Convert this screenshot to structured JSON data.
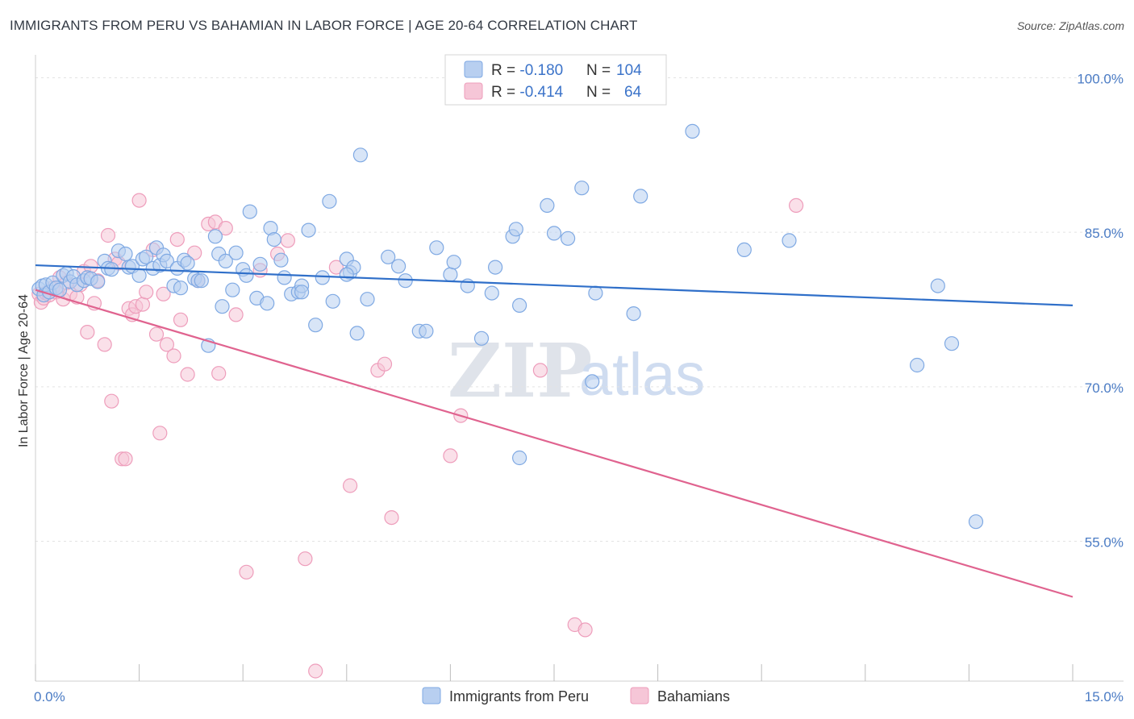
{
  "title": "IMMIGRANTS FROM PERU VS BAHAMIAN IN LABOR FORCE | AGE 20-64 CORRELATION CHART",
  "source": "Source: ZipAtlas.com",
  "watermark": {
    "zip": "ZIP",
    "atlas": "atlas"
  },
  "legend_box": {
    "rows": [
      {
        "r_label": "R = ",
        "r_value": "-0.180",
        "n_label": "N = ",
        "n_value": "104"
      },
      {
        "r_label": "R = ",
        "r_value": "-0.414",
        "n_label": "N = ",
        "n_value": "64"
      }
    ]
  },
  "chart_data": {
    "type": "scatter",
    "title": "IMMIGRANTS FROM PERU VS BAHAMIAN IN LABOR FORCE | AGE 20-64 CORRELATION CHART",
    "xlabel": "",
    "ylabel": "In Labor Force | Age 20-64",
    "xlim": [
      0,
      15
    ],
    "ylim": [
      40,
      102
    ],
    "x_tick_labels": [
      {
        "value": 0,
        "label": "0.0%"
      },
      {
        "value": 15,
        "label": "15.0%"
      }
    ],
    "y_tick_labels": [
      {
        "value": 100,
        "label": "100.0%"
      },
      {
        "value": 85,
        "label": "85.0%"
      },
      {
        "value": 70,
        "label": "70.0%"
      },
      {
        "value": 55,
        "label": "55.0%"
      }
    ],
    "grid": true,
    "legend_position": "bottom-center",
    "series": [
      {
        "name": "Immigrants from Peru",
        "color": "#7fa9e3",
        "fill": "#b8cff0",
        "line_color": "#2f6fc9",
        "r": "-0.180",
        "n": "104",
        "trend": {
          "x0": 0,
          "y0": 81.8,
          "x1": 15,
          "y1": 77.9
        },
        "points": [
          [
            0.05,
            79.5
          ],
          [
            0.1,
            79.8
          ],
          [
            0.12,
            78.9
          ],
          [
            0.15,
            79.9
          ],
          [
            0.2,
            79.2
          ],
          [
            0.25,
            80.1
          ],
          [
            0.3,
            79.6
          ],
          [
            0.35,
            79.4
          ],
          [
            0.4,
            80.8
          ],
          [
            0.45,
            81.0
          ],
          [
            0.5,
            80.2
          ],
          [
            0.55,
            80.7
          ],
          [
            0.6,
            79.9
          ],
          [
            0.7,
            80.3
          ],
          [
            0.75,
            80.6
          ],
          [
            0.8,
            80.5
          ],
          [
            0.9,
            80.2
          ],
          [
            1.0,
            82.2
          ],
          [
            1.05,
            81.5
          ],
          [
            1.1,
            81.4
          ],
          [
            1.2,
            83.2
          ],
          [
            1.3,
            82.9
          ],
          [
            1.35,
            81.6
          ],
          [
            1.4,
            81.7
          ],
          [
            1.5,
            80.8
          ],
          [
            1.55,
            82.4
          ],
          [
            1.6,
            82.6
          ],
          [
            1.7,
            81.5
          ],
          [
            1.75,
            83.5
          ],
          [
            1.8,
            81.8
          ],
          [
            1.85,
            82.8
          ],
          [
            1.9,
            82.2
          ],
          [
            2.0,
            79.8
          ],
          [
            2.05,
            81.5
          ],
          [
            2.1,
            79.6
          ],
          [
            2.15,
            82.3
          ],
          [
            2.2,
            82.0
          ],
          [
            2.3,
            80.5
          ],
          [
            2.35,
            80.3
          ],
          [
            2.4,
            80.3
          ],
          [
            2.5,
            74.0
          ],
          [
            2.6,
            84.6
          ],
          [
            2.65,
            82.9
          ],
          [
            2.7,
            77.8
          ],
          [
            2.75,
            82.2
          ],
          [
            2.85,
            79.4
          ],
          [
            2.9,
            83.0
          ],
          [
            3.0,
            81.4
          ],
          [
            3.05,
            80.8
          ],
          [
            3.1,
            87.0
          ],
          [
            3.2,
            78.6
          ],
          [
            3.25,
            81.9
          ],
          [
            3.35,
            78.1
          ],
          [
            3.4,
            85.4
          ],
          [
            3.45,
            84.3
          ],
          [
            3.55,
            82.3
          ],
          [
            3.6,
            80.6
          ],
          [
            3.7,
            79.0
          ],
          [
            3.8,
            79.2
          ],
          [
            3.85,
            79.8
          ],
          [
            3.95,
            85.2
          ],
          [
            4.05,
            76.0
          ],
          [
            4.15,
            80.6
          ],
          [
            4.25,
            88.0
          ],
          [
            4.3,
            78.3
          ],
          [
            4.5,
            82.4
          ],
          [
            4.55,
            81.1
          ],
          [
            4.6,
            81.6
          ],
          [
            4.65,
            75.2
          ],
          [
            4.7,
            92.5
          ],
          [
            4.8,
            78.5
          ],
          [
            5.1,
            82.6
          ],
          [
            5.25,
            81.7
          ],
          [
            5.35,
            80.3
          ],
          [
            5.55,
            75.4
          ],
          [
            5.65,
            75.4
          ],
          [
            5.8,
            83.5
          ],
          [
            6.0,
            80.9
          ],
          [
            6.05,
            82.1
          ],
          [
            6.25,
            79.8
          ],
          [
            6.45,
            74.7
          ],
          [
            6.6,
            79.1
          ],
          [
            6.65,
            81.6
          ],
          [
            6.9,
            84.6
          ],
          [
            6.95,
            85.3
          ],
          [
            7.0,
            77.9
          ],
          [
            7.4,
            87.6
          ],
          [
            7.5,
            84.9
          ],
          [
            7.7,
            84.4
          ],
          [
            7.9,
            89.3
          ],
          [
            8.05,
            70.5
          ],
          [
            8.1,
            79.1
          ],
          [
            8.65,
            77.1
          ],
          [
            8.75,
            88.5
          ],
          [
            9.5,
            94.8
          ],
          [
            10.25,
            83.3
          ],
          [
            10.9,
            84.2
          ],
          [
            12.75,
            72.1
          ],
          [
            13.05,
            79.8
          ],
          [
            13.25,
            74.2
          ],
          [
            13.6,
            56.9
          ],
          [
            7.0,
            63.1
          ],
          [
            3.85,
            79.2
          ],
          [
            4.5,
            80.9
          ]
        ]
      },
      {
        "name": "Bahamians",
        "color": "#ee9dbb",
        "fill": "#f6c6d7",
        "line_color": "#e0638f",
        "r": "-0.414",
        "n": "64",
        "trend": {
          "x0": 0,
          "y0": 79.4,
          "x1": 15,
          "y1": 49.6
        },
        "points": [
          [
            0.05,
            79.0
          ],
          [
            0.08,
            78.2
          ],
          [
            0.12,
            78.6
          ],
          [
            0.15,
            79.1
          ],
          [
            0.2,
            78.9
          ],
          [
            0.25,
            79.6
          ],
          [
            0.3,
            79.2
          ],
          [
            0.35,
            80.6
          ],
          [
            0.4,
            78.5
          ],
          [
            0.45,
            80.1
          ],
          [
            0.5,
            79.0
          ],
          [
            0.6,
            78.7
          ],
          [
            0.65,
            79.9
          ],
          [
            0.7,
            81.2
          ],
          [
            0.75,
            75.3
          ],
          [
            0.8,
            81.7
          ],
          [
            0.85,
            78.1
          ],
          [
            0.9,
            80.3
          ],
          [
            1.0,
            74.1
          ],
          [
            1.05,
            84.7
          ],
          [
            1.1,
            68.6
          ],
          [
            1.15,
            82.4
          ],
          [
            1.2,
            82.0
          ],
          [
            1.25,
            63.0
          ],
          [
            1.3,
            63.0
          ],
          [
            1.35,
            77.6
          ],
          [
            1.4,
            77.0
          ],
          [
            1.45,
            77.8
          ],
          [
            1.5,
            88.1
          ],
          [
            1.55,
            78.0
          ],
          [
            1.6,
            79.2
          ],
          [
            1.7,
            83.3
          ],
          [
            1.75,
            75.1
          ],
          [
            1.8,
            65.5
          ],
          [
            1.85,
            79.0
          ],
          [
            1.9,
            74.1
          ],
          [
            2.0,
            73.0
          ],
          [
            2.05,
            84.3
          ],
          [
            2.1,
            76.5
          ],
          [
            2.2,
            71.2
          ],
          [
            2.3,
            83.0
          ],
          [
            2.35,
            80.3
          ],
          [
            2.5,
            85.8
          ],
          [
            2.6,
            86.0
          ],
          [
            2.65,
            71.3
          ],
          [
            2.75,
            85.4
          ],
          [
            2.9,
            77.0
          ],
          [
            3.05,
            52.0
          ],
          [
            3.25,
            81.3
          ],
          [
            3.5,
            82.9
          ],
          [
            3.65,
            84.2
          ],
          [
            3.9,
            53.3
          ],
          [
            4.05,
            42.4
          ],
          [
            4.35,
            81.6
          ],
          [
            4.55,
            60.4
          ],
          [
            4.95,
            71.6
          ],
          [
            5.05,
            72.2
          ],
          [
            5.15,
            57.3
          ],
          [
            6.0,
            63.3
          ],
          [
            6.15,
            67.2
          ],
          [
            7.3,
            71.6
          ],
          [
            7.8,
            46.9
          ],
          [
            7.95,
            46.4
          ],
          [
            11.0,
            87.6
          ]
        ]
      }
    ]
  }
}
